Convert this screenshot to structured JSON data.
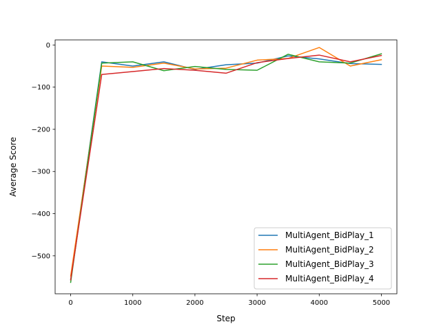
{
  "chart_data": {
    "type": "line",
    "xlabel": "Step",
    "ylabel": "Average Score",
    "xlim": [
      -250,
      5250
    ],
    "ylim": [
      -590,
      12
    ],
    "xticks": [
      0,
      1000,
      2000,
      3000,
      4000,
      5000
    ],
    "xtick_labels": [
      "0",
      "1000",
      "2000",
      "3000",
      "4000",
      "5000"
    ],
    "yticks": [
      0,
      -100,
      -200,
      -300,
      -400,
      -500
    ],
    "ytick_labels": [
      "0",
      "−100",
      "−200",
      "−300",
      "−400",
      "−500"
    ],
    "grid": false,
    "legend_position": "lower-right",
    "x": [
      0,
      500,
      1000,
      1500,
      2000,
      2500,
      3000,
      3500,
      4000,
      4500,
      5000
    ],
    "series": [
      {
        "name": "MultiAgent_BidPlay_1",
        "color": "#1f77b4",
        "values": [
          -557,
          -40,
          -50,
          -40,
          -58,
          -47,
          -43,
          -26,
          -33,
          -44,
          -46
        ]
      },
      {
        "name": "MultiAgent_BidPlay_2",
        "color": "#ff7f0e",
        "values": [
          -548,
          -50,
          -53,
          -43,
          -57,
          -55,
          -36,
          -32,
          -6,
          -50,
          -35
        ]
      },
      {
        "name": "MultiAgent_BidPlay_3",
        "color": "#2ca02c",
        "values": [
          -563,
          -43,
          -40,
          -61,
          -51,
          -58,
          -60,
          -22,
          -40,
          -43,
          -21
        ]
      },
      {
        "name": "MultiAgent_BidPlay_4",
        "color": "#d62728",
        "values": [
          -557,
          -70,
          -63,
          -56,
          -60,
          -67,
          -42,
          -32,
          -24,
          -40,
          -25
        ]
      }
    ]
  }
}
